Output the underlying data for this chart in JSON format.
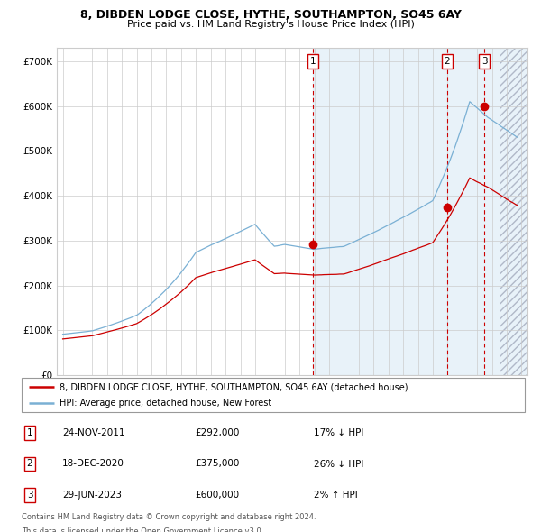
{
  "title1": "8, DIBDEN LODGE CLOSE, HYTHE, SOUTHAMPTON, SO45 6AY",
  "title2": "Price paid vs. HM Land Registry's House Price Index (HPI)",
  "ylabel_ticks": [
    "£0",
    "£100K",
    "£200K",
    "£300K",
    "£400K",
    "£500K",
    "£600K",
    "£700K"
  ],
  "ytick_vals": [
    0,
    100000,
    200000,
    300000,
    400000,
    500000,
    600000,
    700000
  ],
  "ylim": [
    0,
    730000
  ],
  "xlim_start": 1994.6,
  "xlim_end": 2026.4,
  "sale_dates": [
    2011.9,
    2020.97,
    2023.49
  ],
  "sale_prices": [
    292000,
    375000,
    600000
  ],
  "sale_labels": [
    "1",
    "2",
    "3"
  ],
  "legend_red": "8, DIBDEN LODGE CLOSE, HYTHE, SOUTHAMPTON, SO45 6AY (detached house)",
  "legend_blue": "HPI: Average price, detached house, New Forest",
  "table_data": [
    [
      "1",
      "24-NOV-2011",
      "£292,000",
      "17% ↓ HPI"
    ],
    [
      "2",
      "18-DEC-2020",
      "£375,000",
      "26% ↓ HPI"
    ],
    [
      "3",
      "29-JUN-2023",
      "£600,000",
      "2% ↑ HPI"
    ]
  ],
  "footnote1": "Contains HM Land Registry data © Crown copyright and database right 2024.",
  "footnote2": "This data is licensed under the Open Government Licence v3.0.",
  "hpi_color": "#7ab0d4",
  "price_color": "#cc0000",
  "grid_color": "#cccccc",
  "bg_shaded_color": "#daeaf5",
  "bg_shaded_start": 2011.9,
  "hatch_start": 2024.58,
  "hatch_end": 2026.4
}
